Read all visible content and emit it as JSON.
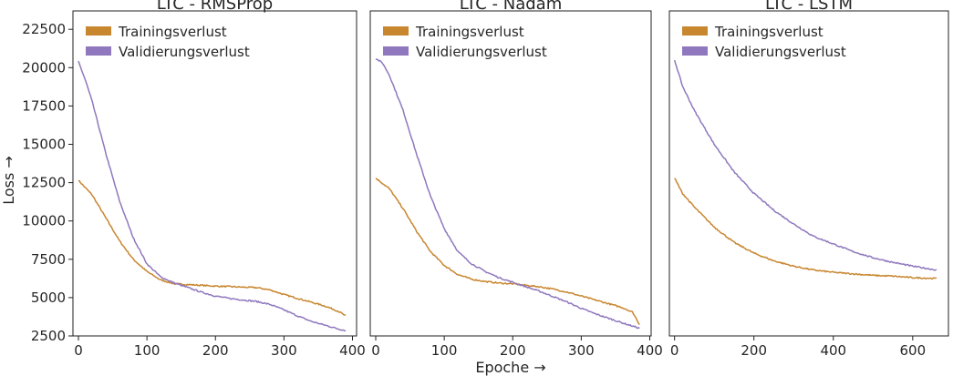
{
  "colors": {
    "training": "#c8862f",
    "validation": "#8f78bd",
    "frame": "#222222",
    "text": "#262626"
  },
  "figure": {
    "ylabel": "Loss →",
    "xlabel": "Epoche →"
  },
  "chart_data": [
    {
      "type": "line",
      "title": "LTC - RMSProp",
      "xlim": [
        -8,
        406
      ],
      "ylim": [
        2500,
        23700
      ],
      "xticks": [
        0,
        100,
        200,
        300,
        400
      ],
      "xtick_labels": [
        "0",
        "100",
        "200",
        "300",
        "400"
      ],
      "yticks": [
        2500,
        5000,
        7500,
        10000,
        12500,
        15000,
        17500,
        20000,
        22500
      ],
      "ytick_labels": [
        "2500",
        "5000",
        "7500",
        "10000",
        "12500",
        "15000",
        "17500",
        "20000",
        "22500"
      ],
      "legend": "top-left",
      "series": [
        {
          "name": "Trainingsverlust",
          "color": "training",
          "x": [
            0,
            20,
            40,
            60,
            80,
            100,
            120,
            140,
            160,
            180,
            200,
            220,
            240,
            260,
            280,
            300,
            320,
            340,
            360,
            380,
            390
          ],
          "y": [
            12650,
            11700,
            10200,
            8700,
            7500,
            6700,
            6150,
            5900,
            5850,
            5800,
            5750,
            5720,
            5680,
            5650,
            5500,
            5200,
            4950,
            4700,
            4450,
            4100,
            3800
          ]
        },
        {
          "name": "Validierungsverlust",
          "color": "validation",
          "x": [
            0,
            10,
            20,
            40,
            60,
            80,
            100,
            120,
            140,
            160,
            180,
            200,
            220,
            240,
            260,
            280,
            300,
            320,
            340,
            360,
            380,
            390
          ],
          "y": [
            20400,
            19200,
            17800,
            14400,
            11300,
            8900,
            7200,
            6350,
            5950,
            5650,
            5350,
            5100,
            4950,
            4850,
            4750,
            4550,
            4200,
            3800,
            3450,
            3200,
            2950,
            2850
          ]
        }
      ]
    },
    {
      "type": "line",
      "title": "LTC - Nadam",
      "xlim": [
        -8,
        402
      ],
      "ylim": [
        2500,
        23700
      ],
      "xticks": [
        0,
        100,
        200,
        300,
        400
      ],
      "xtick_labels": [
        "0",
        "100",
        "200",
        "300",
        "400"
      ],
      "legend": "top-left",
      "series": [
        {
          "name": "Trainingsverlust",
          "color": "training",
          "x": [
            0,
            20,
            40,
            60,
            80,
            100,
            120,
            140,
            160,
            180,
            200,
            220,
            240,
            260,
            280,
            300,
            320,
            340,
            360,
            375,
            385
          ],
          "y": [
            12800,
            12100,
            10800,
            9300,
            8000,
            7100,
            6500,
            6200,
            6050,
            5950,
            5900,
            5800,
            5700,
            5550,
            5350,
            5100,
            4850,
            4600,
            4350,
            4050,
            3250
          ]
        },
        {
          "name": "Validierungsverlust",
          "color": "validation",
          "x": [
            0,
            10,
            20,
            40,
            60,
            80,
            100,
            120,
            140,
            160,
            180,
            200,
            220,
            240,
            260,
            280,
            300,
            320,
            340,
            360,
            385
          ],
          "y": [
            20600,
            20300,
            19500,
            17200,
            14300,
            11600,
            9500,
            8000,
            7200,
            6700,
            6300,
            6000,
            5700,
            5400,
            5050,
            4700,
            4300,
            3950,
            3650,
            3350,
            3000
          ]
        }
      ]
    },
    {
      "type": "line",
      "title": "LTC - LSTM",
      "xlim": [
        -13,
        690
      ],
      "ylim": [
        2500,
        23700
      ],
      "xticks": [
        0,
        200,
        400,
        600
      ],
      "xtick_labels": [
        "0",
        "200",
        "400",
        "600"
      ],
      "legend": "top-left",
      "series": [
        {
          "name": "Trainingsverlust",
          "color": "training",
          "x": [
            0,
            20,
            50,
            100,
            150,
            200,
            250,
            300,
            350,
            400,
            450,
            500,
            550,
            600,
            660
          ],
          "y": [
            12800,
            11800,
            10900,
            9600,
            8600,
            7900,
            7400,
            7050,
            6800,
            6650,
            6550,
            6450,
            6400,
            6300,
            6250
          ]
        },
        {
          "name": "Validierungsverlust",
          "color": "validation",
          "x": [
            0,
            20,
            50,
            100,
            150,
            200,
            250,
            300,
            350,
            400,
            450,
            500,
            550,
            600,
            660
          ],
          "y": [
            20500,
            18800,
            17200,
            15000,
            13200,
            11800,
            10700,
            9800,
            9000,
            8500,
            8000,
            7600,
            7300,
            7050,
            6800
          ]
        }
      ]
    }
  ]
}
